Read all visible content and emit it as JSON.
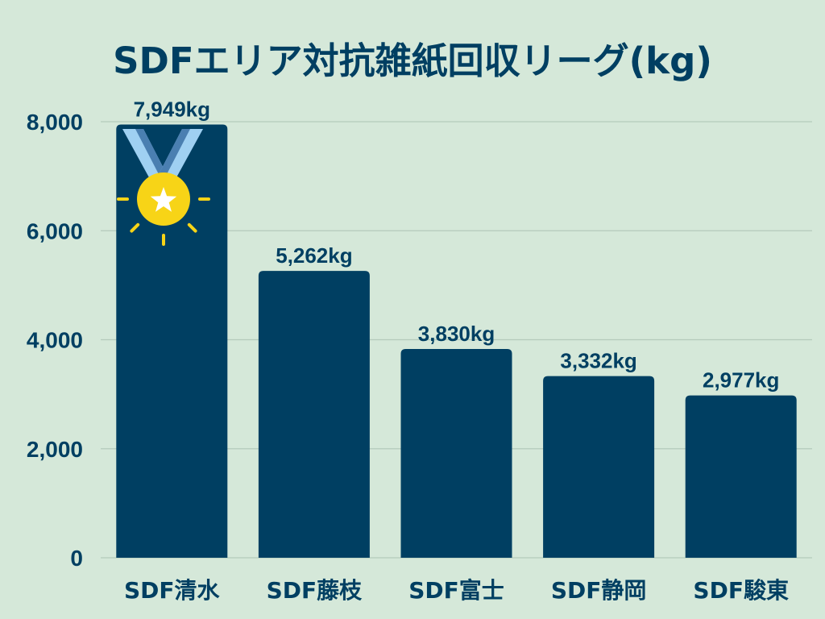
{
  "colors": {
    "background": "#d5e8d9",
    "bar": "#003f62",
    "text": "#003f62",
    "grid": "#b4cabb",
    "medal_gold": "#f7d417",
    "ribbon_light": "#9fd0f2",
    "ribbon_dark": "#4a7fb1",
    "star": "#ffffff"
  },
  "chart_data": {
    "type": "bar",
    "title": "SDFエリア対抗雑紙回収リーグ(kg)",
    "categories": [
      "SDF清水",
      "SDF藤枝",
      "SDF富士",
      "SDF静岡",
      "SDF駿東"
    ],
    "values": [
      7949,
      5262,
      3830,
      3332,
      2977
    ],
    "value_labels": [
      "7,949kg",
      "5,262kg",
      "3,830kg",
      "3,332kg",
      "2,977kg"
    ],
    "yticks": [
      0,
      2000,
      4000,
      6000,
      8000
    ],
    "ytick_labels": [
      "0",
      "2,000",
      "4,000",
      "6,000",
      "8,000"
    ],
    "ylim": [
      0,
      8000
    ],
    "xlabel": "",
    "ylabel": "",
    "grid": true,
    "annotations": [
      {
        "type": "medal",
        "icon": "gold-medal-icon",
        "category": "SDF清水"
      }
    ]
  }
}
